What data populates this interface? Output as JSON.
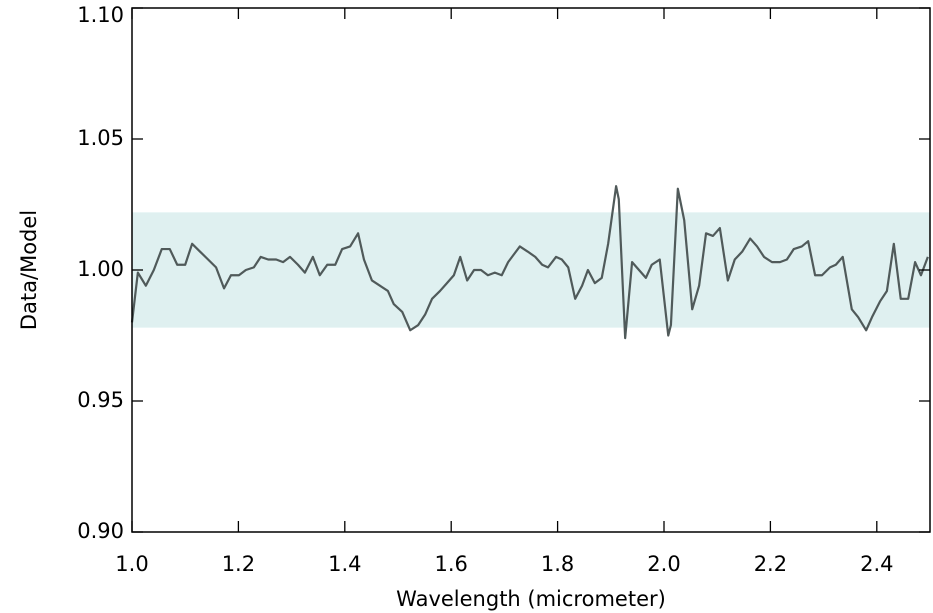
{
  "chart_data": {
    "type": "line",
    "x_label": "Wavelength (micrometer)",
    "y_label": "Data/Model",
    "xlim": [
      1.0,
      2.5
    ],
    "ylim": [
      0.9,
      1.1
    ],
    "xticks": [
      {
        "value": 1.0,
        "label": "1.0"
      },
      {
        "value": 1.2,
        "label": "1.2"
      },
      {
        "value": 1.4,
        "label": "1.4"
      },
      {
        "value": 1.6,
        "label": "1.6"
      },
      {
        "value": 1.8,
        "label": "1.8"
      },
      {
        "value": 2.0,
        "label": "2.0"
      },
      {
        "value": 2.2,
        "label": "2.2"
      },
      {
        "value": 2.4,
        "label": "2.4"
      }
    ],
    "yticks": [
      {
        "value": 0.9,
        "label": "0.90"
      },
      {
        "value": 0.95,
        "label": "0.95"
      },
      {
        "value": 1.0,
        "label": "1.00"
      },
      {
        "value": 1.05,
        "label": "1.05"
      },
      {
        "value": 1.1,
        "label": "1.10"
      }
    ],
    "band": [
      0.978,
      1.022
    ],
    "band_color": "#dff0f0",
    "x": [
      1.0,
      1.011,
      1.026,
      1.041,
      1.056,
      1.071,
      1.085,
      1.1,
      1.113,
      1.128,
      1.143,
      1.158,
      1.173,
      1.186,
      1.201,
      1.214,
      1.229,
      1.242,
      1.256,
      1.271,
      1.284,
      1.297,
      1.312,
      1.325,
      1.34,
      1.353,
      1.367,
      1.382,
      1.395,
      1.41,
      1.425,
      1.436,
      1.451,
      1.466,
      1.481,
      1.492,
      1.508,
      1.523,
      1.538,
      1.551,
      1.564,
      1.579,
      1.592,
      1.605,
      1.617,
      1.63,
      1.643,
      1.656,
      1.669,
      1.682,
      1.695,
      1.707,
      1.718,
      1.729,
      1.744,
      1.758,
      1.771,
      1.782,
      1.797,
      1.808,
      1.82,
      1.833,
      1.846,
      1.857,
      1.87,
      1.883,
      1.895,
      1.91,
      1.915,
      1.927,
      1.94,
      1.953,
      1.966,
      1.977,
      1.992,
      2.008,
      2.013,
      2.026,
      2.038,
      2.053,
      2.066,
      2.079,
      2.092,
      2.105,
      2.12,
      2.133,
      2.147,
      2.162,
      2.175,
      2.188,
      2.203,
      2.218,
      2.231,
      2.244,
      2.259,
      2.271,
      2.284,
      2.297,
      2.312,
      2.323,
      2.336,
      2.353,
      2.365,
      2.38,
      2.391,
      2.406,
      2.419,
      2.432,
      2.445,
      2.459,
      2.472,
      2.483,
      2.496
    ],
    "series": [
      {
        "color": "#505a5a",
        "values": [
          0.98,
          0.999,
          0.994,
          1.0,
          1.008,
          1.008,
          1.002,
          1.002,
          1.01,
          1.007,
          1.004,
          1.001,
          0.993,
          0.998,
          0.998,
          1.0,
          1.001,
          1.005,
          1.004,
          1.004,
          1.003,
          1.005,
          1.002,
          0.999,
          1.005,
          0.998,
          1.002,
          1.002,
          1.008,
          1.009,
          1.014,
          1.004,
          0.996,
          0.994,
          0.992,
          0.987,
          0.984,
          0.977,
          0.979,
          0.983,
          0.989,
          0.992,
          0.995,
          0.998,
          1.005,
          0.996,
          1.0,
          1.0,
          0.998,
          0.999,
          0.998,
          1.003,
          1.006,
          1.009,
          1.007,
          1.005,
          1.002,
          1.001,
          1.005,
          1.004,
          1.001,
          0.989,
          0.994,
          1.0,
          0.995,
          0.997,
          1.01,
          1.032,
          1.027,
          0.974,
          1.003,
          1.0,
          0.997,
          1.002,
          1.004,
          0.975,
          0.979,
          1.031,
          1.019,
          0.985,
          0.994,
          1.014,
          1.013,
          1.016,
          0.996,
          1.004,
          1.007,
          1.012,
          1.009,
          1.005,
          1.003,
          1.003,
          1.004,
          1.008,
          1.009,
          1.011,
          0.998,
          0.998,
          1.001,
          1.002,
          1.005,
          0.985,
          0.982,
          0.977,
          0.982,
          0.988,
          0.992,
          1.01,
          0.989,
          0.989,
          1.003,
          0.998,
          1.005
        ]
      }
    ]
  }
}
